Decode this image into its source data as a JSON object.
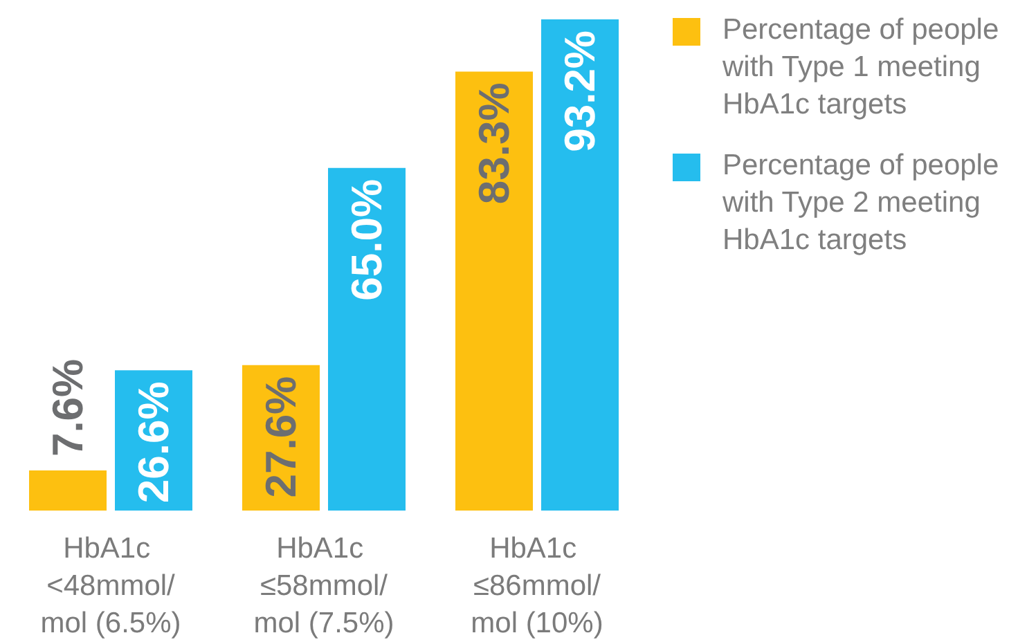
{
  "chart_data": {
    "type": "bar",
    "categories": [
      "HbA1c <48mmol/mol (6.5%)",
      "HbA1c ≤58mmol/mol (7.5%)",
      "HbA1c ≤86mmol/mol (10%)"
    ],
    "series": [
      {
        "name": "Percentage of people with Type 1 meeting HbA1c targets",
        "color": "#fdc010",
        "values": [
          7.6,
          27.6,
          83.3
        ],
        "value_labels": [
          "7.6%",
          "27.6%",
          "83.3%"
        ]
      },
      {
        "name": "Percentage of people with Type 2 meeting HbA1c targets",
        "color": "#25bdee",
        "values": [
          26.6,
          65.0,
          93.2
        ],
        "value_labels": [
          "26.6%",
          "65.0%",
          "93.2%"
        ]
      }
    ],
    "legend": "top right",
    "tick_labels": "x"
  }
}
